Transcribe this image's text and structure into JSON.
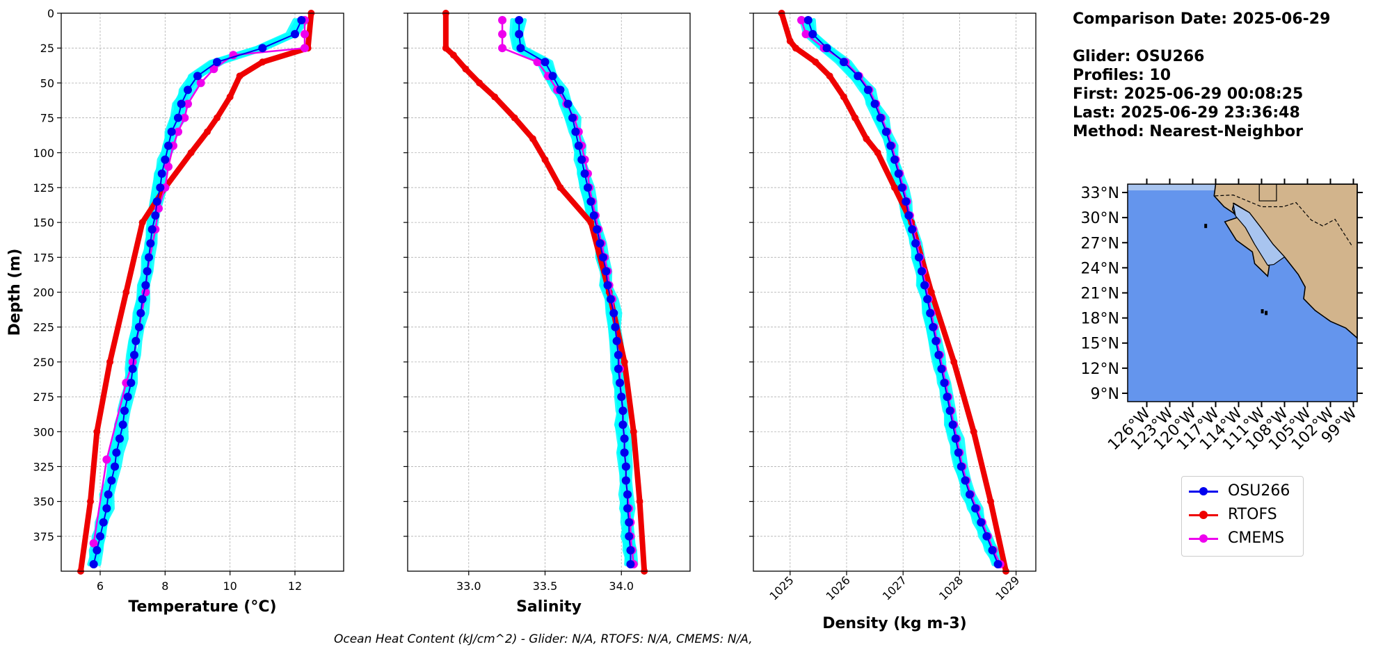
{
  "info": {
    "comparison_date": "Comparison Date: 2025-06-29",
    "glider": "Glider: OSU266",
    "profiles": "Profiles: 10",
    "first": "First: 2025-06-29 00:08:25",
    "last": "Last: 2025-06-29 23:36:48",
    "method": "Method: Nearest-Neighbor"
  },
  "footer": "Ocean Heat Content (kJ/cm^2) - Glider: N/A,  RTOFS: N/A,  CMEMS: N/A,",
  "legend": [
    {
      "name": "OSU266",
      "color": "#0000ee"
    },
    {
      "name": "RTOFS",
      "color": "#ee0000"
    },
    {
      "name": "CMEMS",
      "color": "#ee00ee"
    }
  ],
  "colors": {
    "glider_profiles": "#00ffff",
    "ocean": "#6495ed",
    "shelf": "#a8c4ef",
    "land": "#d2b48c"
  },
  "chart_data": [
    {
      "type": "line",
      "xlabel": "Temperature (°C)",
      "ylabel": "Depth (m)",
      "xlim": [
        4.8,
        13.5
      ],
      "ylim": [
        400,
        0
      ],
      "xticks": [
        6,
        8,
        10,
        12
      ],
      "yticks": [
        0,
        25,
        50,
        75,
        100,
        125,
        150,
        175,
        200,
        225,
        250,
        275,
        300,
        325,
        350,
        375
      ],
      "grid": true,
      "series": [
        {
          "name": "OSU266",
          "depth": [
            5,
            15,
            25,
            35,
            45,
            55,
            65,
            75,
            85,
            95,
            105,
            115,
            125,
            135,
            145,
            155,
            165,
            175,
            185,
            195,
            205,
            215,
            225,
            235,
            245,
            255,
            265,
            275,
            285,
            295,
            305,
            315,
            325,
            335,
            345,
            355,
            365,
            375,
            385,
            395
          ],
          "values": [
            12.2,
            12.0,
            11.0,
            9.6,
            9.0,
            8.7,
            8.5,
            8.4,
            8.2,
            8.1,
            8.0,
            7.9,
            7.85,
            7.75,
            7.7,
            7.6,
            7.55,
            7.5,
            7.45,
            7.4,
            7.3,
            7.25,
            7.2,
            7.1,
            7.05,
            7.0,
            6.95,
            6.85,
            6.75,
            6.7,
            6.6,
            6.5,
            6.45,
            6.35,
            6.25,
            6.2,
            6.1,
            6.0,
            5.9,
            5.8
          ]
        },
        {
          "name": "RTOFS",
          "depth": [
            0,
            25,
            35,
            45,
            60,
            75,
            85,
            100,
            125,
            150,
            200,
            250,
            300,
            350,
            400
          ],
          "values": [
            12.5,
            12.4,
            11.0,
            10.3,
            10.0,
            9.6,
            9.3,
            8.8,
            8.0,
            7.3,
            6.8,
            6.3,
            5.9,
            5.7,
            5.4
          ]
        },
        {
          "name": "CMEMS",
          "depth": [
            5,
            15,
            25,
            30,
            40,
            50,
            65,
            75,
            85,
            95,
            110,
            125,
            140,
            155,
            185,
            200,
            225,
            250,
            265,
            320,
            380
          ],
          "values": [
            12.3,
            12.3,
            12.3,
            10.1,
            9.5,
            9.1,
            8.7,
            8.6,
            8.4,
            8.25,
            8.1,
            8.0,
            7.8,
            7.7,
            7.45,
            7.4,
            7.2,
            7.0,
            6.8,
            6.2,
            5.8
          ]
        }
      ]
    },
    {
      "type": "line",
      "xlabel": "Salinity",
      "ylabel": "",
      "xlim": [
        32.6,
        34.45
      ],
      "ylim": [
        400,
        0
      ],
      "xticks": [
        33.0,
        33.5,
        34.0
      ],
      "grid": true,
      "series": [
        {
          "name": "OSU266",
          "depth": [
            5,
            15,
            25,
            35,
            45,
            55,
            65,
            75,
            85,
            95,
            105,
            115,
            125,
            135,
            145,
            155,
            165,
            175,
            185,
            195,
            205,
            215,
            225,
            235,
            245,
            255,
            265,
            275,
            285,
            295,
            305,
            315,
            325,
            335,
            345,
            355,
            365,
            375,
            385,
            395
          ],
          "values": [
            33.33,
            33.33,
            33.34,
            33.5,
            33.55,
            33.6,
            33.65,
            33.68,
            33.7,
            33.72,
            33.74,
            33.76,
            33.78,
            33.8,
            33.82,
            33.84,
            33.86,
            33.88,
            33.9,
            33.91,
            33.93,
            33.95,
            33.96,
            33.97,
            33.98,
            33.98,
            33.99,
            34.0,
            34.01,
            34.01,
            34.02,
            34.02,
            34.03,
            34.03,
            34.04,
            34.04,
            34.05,
            34.05,
            34.06,
            34.06
          ]
        },
        {
          "name": "RTOFS",
          "depth": [
            0,
            25,
            30,
            40,
            50,
            60,
            75,
            90,
            105,
            125,
            150,
            200,
            250,
            300,
            350,
            400
          ],
          "values": [
            32.85,
            32.85,
            32.9,
            32.98,
            33.07,
            33.17,
            33.3,
            33.42,
            33.5,
            33.6,
            33.8,
            33.92,
            34.02,
            34.08,
            34.12,
            34.15
          ]
        },
        {
          "name": "CMEMS",
          "depth": [
            5,
            15,
            25,
            35,
            45,
            55,
            65,
            75,
            85,
            95,
            105,
            115,
            125,
            135,
            145,
            155,
            165,
            175,
            185,
            195,
            205,
            215,
            225,
            235,
            245,
            255,
            265,
            275,
            285,
            295,
            305,
            315,
            325,
            335,
            345,
            355,
            365,
            375,
            385,
            395
          ],
          "values": [
            33.22,
            33.22,
            33.22,
            33.45,
            33.52,
            33.58,
            33.64,
            33.69,
            33.72,
            33.74,
            33.76,
            33.78,
            33.79,
            33.81,
            33.83,
            33.85,
            33.87,
            33.89,
            33.91,
            33.92,
            33.94,
            33.95,
            33.96,
            33.97,
            33.98,
            33.99,
            33.99,
            34.0,
            34.01,
            34.01,
            34.02,
            34.02,
            34.03,
            34.03,
            34.04,
            34.05,
            34.06,
            34.06,
            34.07,
            34.08
          ]
        }
      ]
    },
    {
      "type": "line",
      "xlabel": "Density (kg m-3)",
      "ylabel": "",
      "xlim": [
        1024.35,
        1029.35
      ],
      "ylim": [
        400,
        0
      ],
      "xticks": [
        1025,
        1026,
        1027,
        1028,
        1029
      ],
      "grid": true,
      "series": [
        {
          "name": "OSU266",
          "depth": [
            5,
            15,
            25,
            35,
            45,
            55,
            65,
            75,
            85,
            95,
            105,
            115,
            125,
            135,
            145,
            155,
            165,
            175,
            185,
            195,
            205,
            215,
            225,
            235,
            245,
            255,
            265,
            275,
            285,
            295,
            305,
            315,
            325,
            335,
            345,
            355,
            365,
            375,
            385,
            395
          ],
          "values": [
            1025.32,
            1025.4,
            1025.65,
            1025.95,
            1026.2,
            1026.38,
            1026.5,
            1026.6,
            1026.7,
            1026.78,
            1026.85,
            1026.92,
            1026.98,
            1027.05,
            1027.1,
            1027.16,
            1027.22,
            1027.28,
            1027.33,
            1027.38,
            1027.43,
            1027.48,
            1027.53,
            1027.58,
            1027.63,
            1027.68,
            1027.73,
            1027.78,
            1027.83,
            1027.88,
            1027.93,
            1027.98,
            1028.03,
            1028.1,
            1028.18,
            1028.28,
            1028.38,
            1028.48,
            1028.58,
            1028.68
          ]
        },
        {
          "name": "RTOFS",
          "depth": [
            0,
            20,
            25,
            35,
            45,
            60,
            75,
            90,
            100,
            125,
            150,
            200,
            250,
            300,
            350,
            400
          ],
          "values": [
            1024.85,
            1025.0,
            1025.1,
            1025.45,
            1025.7,
            1025.95,
            1026.15,
            1026.35,
            1026.55,
            1026.85,
            1027.15,
            1027.5,
            1027.9,
            1028.25,
            1028.55,
            1028.82
          ]
        },
        {
          "name": "CMEMS",
          "depth": [
            5,
            15,
            25,
            35,
            45,
            55,
            65,
            75,
            85,
            95,
            105,
            115,
            125,
            135,
            145,
            155,
            165,
            175,
            185,
            195,
            205,
            215,
            225,
            235,
            245,
            255,
            265,
            275,
            285,
            295,
            305,
            315,
            325,
            335,
            345,
            355,
            365,
            375,
            385,
            395
          ],
          "values": [
            1025.2,
            1025.28,
            1025.6,
            1025.98,
            1026.22,
            1026.4,
            1026.52,
            1026.62,
            1026.72,
            1026.8,
            1026.87,
            1026.94,
            1027.0,
            1027.07,
            1027.12,
            1027.18,
            1027.24,
            1027.3,
            1027.35,
            1027.4,
            1027.45,
            1027.5,
            1027.55,
            1027.6,
            1027.65,
            1027.7,
            1027.75,
            1027.8,
            1027.85,
            1027.9,
            1027.95,
            1028.0,
            1028.05,
            1028.12,
            1028.2,
            1028.3,
            1028.4,
            1028.5,
            1028.6,
            1028.72
          ]
        }
      ]
    },
    {
      "type": "map",
      "lat_ticks": [
        "33°N",
        "30°N",
        "27°N",
        "24°N",
        "21°N",
        "18°N",
        "15°N",
        "12°N",
        "9°N"
      ],
      "lon_ticks": [
        "126°W",
        "123°W",
        "120°W",
        "117°W",
        "114°W",
        "111°W",
        "108°W",
        "105°W",
        "102°W",
        "99°W"
      ],
      "lat_range": [
        8,
        34
      ],
      "lon_range": [
        -128.5,
        -98.5
      ]
    }
  ]
}
